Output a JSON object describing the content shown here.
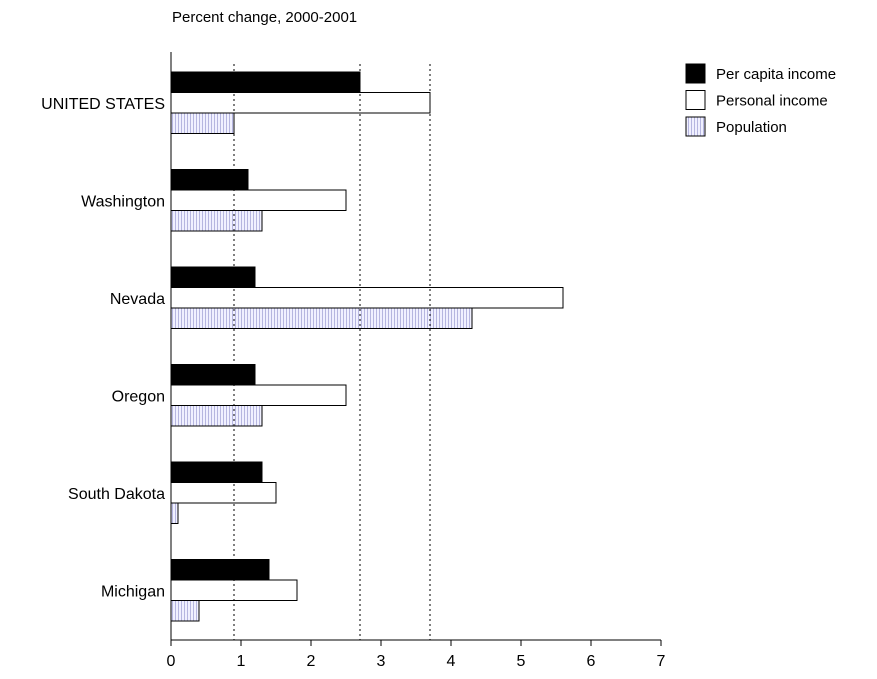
{
  "chart_data": {
    "type": "bar",
    "orientation": "horizontal",
    "title": "Percent change, 2000-2001",
    "categories": [
      "UNITED STATES",
      "Washington",
      "Nevada",
      "Oregon",
      "South Dakota",
      "Michigan"
    ],
    "series": [
      {
        "name": "Per capita income",
        "color": "#000000",
        "values": [
          2.7,
          1.1,
          1.2,
          1.2,
          1.3,
          1.4
        ]
      },
      {
        "name": "Personal income",
        "color": "#ffffff",
        "values": [
          3.7,
          2.5,
          5.6,
          2.5,
          1.5,
          1.8
        ]
      },
      {
        "name": "Population",
        "color": "#eeeeff",
        "values": [
          0.9,
          1.3,
          4.3,
          1.3,
          0.1,
          0.4
        ]
      }
    ],
    "reference_lines": [
      0.9,
      2.7,
      3.7
    ],
    "xlim": [
      0,
      7
    ],
    "xticks": [
      0,
      1,
      2,
      3,
      4,
      5,
      6,
      7
    ],
    "legend_position": "top-right",
    "grid": false
  }
}
